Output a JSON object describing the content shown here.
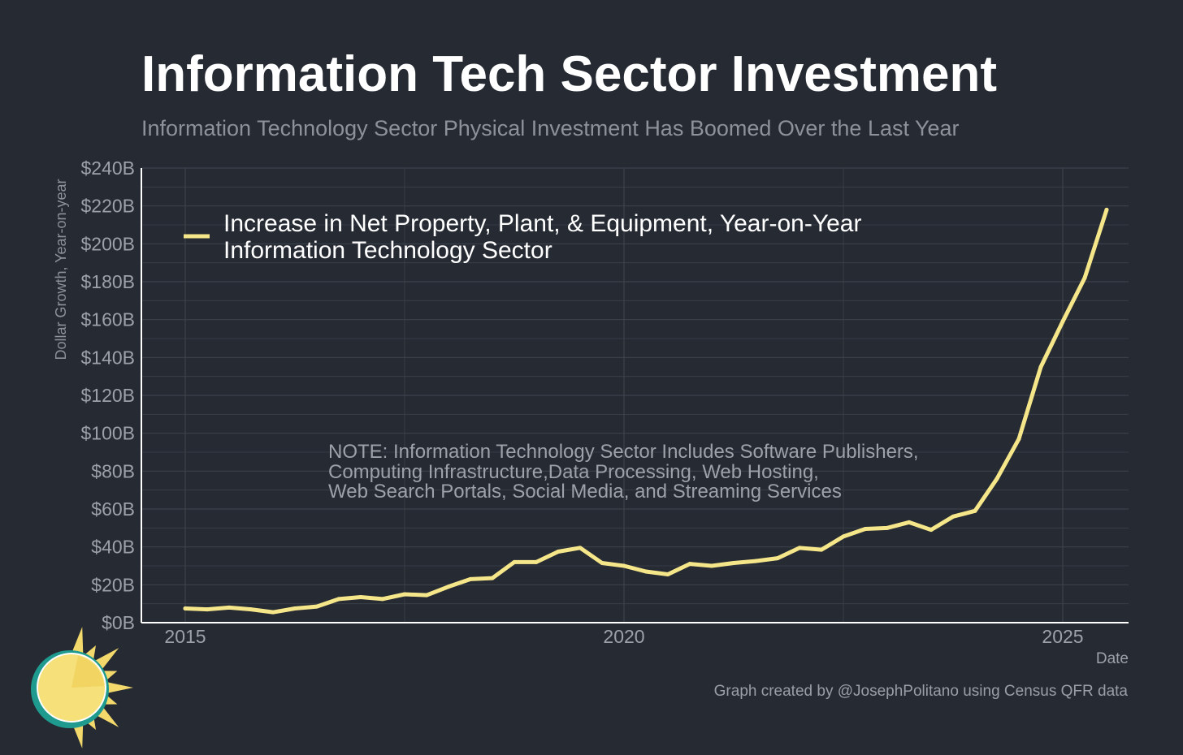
{
  "chart_data": {
    "type": "line",
    "title": "Information Tech Sector Investment",
    "subtitle": "Information Technology Sector Physical Investment Has Boomed Over the Last Year",
    "xlabel": "Date",
    "ylabel": "Dollar Growth, Year-on-year",
    "xlim": [
      2014.5,
      2025.75
    ],
    "ylim": [
      0,
      240
    ],
    "x_ticks": [
      2015,
      2020,
      2025
    ],
    "x_tick_labels": [
      "2015",
      "2020",
      "2025"
    ],
    "y_ticks": [
      0,
      20,
      40,
      60,
      80,
      100,
      120,
      140,
      160,
      180,
      200,
      220,
      240
    ],
    "y_tick_labels": [
      "$0B",
      "$20B",
      "$40B",
      "$60B",
      "$80B",
      "$100B",
      "$120B",
      "$140B",
      "$160B",
      "$180B",
      "$200B",
      "$220B",
      "$240B"
    ],
    "legend": {
      "position": "top-left",
      "label_line1": "Increase in Net Property, Plant, & Equipment, Year-on-Year",
      "label_line2": "Information Technology Sector"
    },
    "note": {
      "line1": "NOTE: Information Technology Sector Includes Software Publishers,",
      "line2": "Computing Infrastructure,Data Processing, Web Hosting,",
      "line3": "Web Search Portals, Social Media, and Streaming Services"
    },
    "series": [
      {
        "name": "Increase in Net Property, Plant, & Equipment, Year-on-Year Information Technology Sector",
        "color": "#f6e68a",
        "x": [
          2015.0,
          2015.25,
          2015.5,
          2015.75,
          2016.0,
          2016.25,
          2016.5,
          2016.75,
          2017.0,
          2017.25,
          2017.5,
          2017.75,
          2018.0,
          2018.25,
          2018.5,
          2018.75,
          2019.0,
          2019.25,
          2019.5,
          2019.75,
          2020.0,
          2020.25,
          2020.5,
          2020.75,
          2021.0,
          2021.25,
          2021.5,
          2021.75,
          2022.0,
          2022.25,
          2022.5,
          2022.75,
          2023.0,
          2023.25,
          2023.5,
          2023.75,
          2024.0,
          2024.25,
          2024.5,
          2024.75,
          2025.0,
          2025.25,
          2025.5
        ],
        "values": [
          7.5,
          7,
          8,
          7,
          5.5,
          7.5,
          8.5,
          12.5,
          13.5,
          12.5,
          15,
          14.5,
          19,
          23,
          23.5,
          32,
          32,
          37.5,
          39.5,
          31.5,
          30,
          27,
          25.5,
          31,
          30,
          31.5,
          32.5,
          34,
          39.5,
          38.5,
          45.5,
          49.5,
          50,
          53,
          49,
          56,
          59,
          76,
          97,
          135,
          159,
          182,
          218
        ]
      }
    ]
  },
  "footer": {
    "credit": "Graph created by @JosephPolitano using Census QFR data",
    "logo_name": "sun-logo"
  },
  "colors": {
    "background": "#252a33",
    "grid": "#3d424b",
    "axis": "#ffffff",
    "tick_text": "#9da1a9",
    "line": "#f6e68a",
    "logo_ring": "#1f9a8e",
    "logo_sun": "#f6e07a",
    "logo_rays": "#f3d96b"
  }
}
